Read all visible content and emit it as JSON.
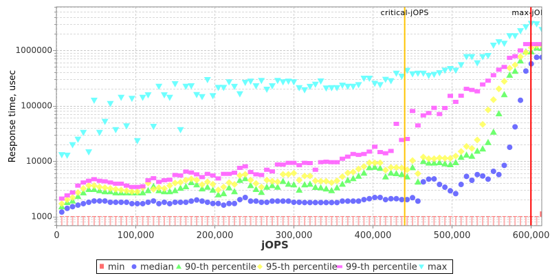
{
  "chart_data": {
    "type": "scatter",
    "ylabel": "Response time, usec",
    "xlabel": "jOPS",
    "yscale": "log",
    "ylim": [
      680,
      6060000
    ],
    "xlim": [
      0,
      613700
    ],
    "grid": true,
    "legend_position": "bottom",
    "y_ticks": [
      1000,
      10000,
      100000,
      1000000
    ],
    "y_tick_labels": [
      "1000",
      "10000",
      "100000",
      "1000000"
    ],
    "x_ticks": [
      0,
      100000,
      200000,
      300000,
      400000,
      500000,
      600000
    ],
    "x_tick_labels": [
      "0",
      "100,000",
      "200,000",
      "300,000",
      "400,000",
      "500,000",
      "600,000"
    ],
    "x_start": 6823,
    "x_step": 6823,
    "annotations": [
      {
        "name": "critical-jOPS",
        "label": "critical-jOPS",
        "x": 440400,
        "color": "#ffc400"
      },
      {
        "name": "max-jOPS",
        "label": "max-jOPS",
        "x": 600000,
        "color": "#ff0000"
      }
    ],
    "series": [
      {
        "name": "min",
        "marker": "square",
        "color": "#ff5555",
        "values": [
          1000,
          1000,
          1000,
          1000,
          1000,
          1000,
          1000,
          1000,
          1000,
          1000,
          1000,
          1000,
          1000,
          1000,
          1000,
          1000,
          1000,
          1000,
          1000,
          1000,
          1000,
          1000,
          1000,
          1000,
          1000,
          1000,
          1000,
          1000,
          1000,
          1000,
          1000,
          1000,
          1000,
          1000,
          1000,
          1000,
          1000,
          1000,
          1000,
          1000,
          1000,
          1000,
          1000,
          1000,
          1000,
          1000,
          1000,
          1000,
          1000,
          1000,
          1000,
          1000,
          1000,
          1000,
          1000,
          1000,
          1000,
          1000,
          1000,
          1000,
          1000,
          1000,
          1000,
          1000,
          1000,
          1000,
          1000,
          1000,
          1000,
          1000,
          1000,
          1000,
          1000,
          1000,
          1000,
          1000,
          1000,
          1000,
          1000,
          1000,
          1000,
          1000,
          1000,
          1000,
          1000,
          1000,
          1000,
          1000,
          1000,
          1100
        ]
      },
      {
        "name": "median",
        "marker": "circle",
        "color": "#5555ff",
        "values": [
          1200,
          1400,
          1500,
          1600,
          1700,
          1800,
          1900,
          1900,
          1900,
          1800,
          1800,
          1800,
          1800,
          1700,
          1700,
          1700,
          1800,
          1900,
          1700,
          1800,
          1700,
          1800,
          1800,
          1800,
          1890,
          1980,
          1890,
          1800,
          1710,
          1710,
          1600,
          1710,
          1710,
          2010,
          2200,
          1890,
          1890,
          1800,
          1800,
          1890,
          1890,
          1890,
          1890,
          1800,
          1800,
          1780,
          1780,
          1780,
          1780,
          1780,
          1780,
          1780,
          1890,
          1890,
          1890,
          1890,
          2010,
          2090,
          2200,
          2200,
          2010,
          2090,
          2090,
          2010,
          2010,
          2180,
          1890,
          4210,
          4710,
          4750,
          3780,
          3370,
          2900,
          2580,
          3780,
          5280,
          4490,
          5690,
          5370,
          4710,
          6520,
          5690,
          8350,
          17700,
          41400,
          125000,
          421000,
          569000,
          745000,
          745000
        ]
      },
      {
        "name": "90-th percentile",
        "marker": "triangle-up",
        "color": "#55ff55",
        "values": [
          1510,
          1800,
          1920,
          2320,
          2690,
          3100,
          3100,
          2950,
          2820,
          2820,
          2690,
          2690,
          2690,
          2690,
          2690,
          2690,
          2950,
          3500,
          2950,
          2820,
          2820,
          2950,
          3250,
          3470,
          4120,
          3750,
          3180,
          3400,
          3010,
          2480,
          2600,
          3310,
          2820,
          4530,
          4850,
          3640,
          3100,
          2740,
          3400,
          3640,
          3400,
          4320,
          3850,
          3750,
          3010,
          3750,
          3850,
          3370,
          3310,
          3160,
          2950,
          3310,
          3850,
          4530,
          4850,
          5370,
          6100,
          7660,
          7800,
          7450,
          5220,
          6100,
          5970,
          5750,
          5220,
          7660,
          4210,
          9900,
          9270,
          9270,
          9440,
          9000,
          8670,
          9440,
          11800,
          12900,
          12300,
          15200,
          16700,
          21800,
          33500,
          71900,
          159000,
          357000,
          421000,
          646000,
          944000,
          944000,
          1110000,
          1090000
        ]
      },
      {
        "name": "95-th percentile",
        "marker": "diamond",
        "color": "#ffff55",
        "values": [
          1700,
          2000,
          2200,
          2700,
          3200,
          3600,
          3600,
          3400,
          3300,
          3200,
          3100,
          3000,
          2900,
          2800,
          2800,
          3300,
          4000,
          3100,
          3300,
          3200,
          3600,
          4000,
          4120,
          4530,
          4750,
          4530,
          3750,
          4210,
          3810,
          3010,
          3400,
          4080,
          3780,
          5490,
          5750,
          4530,
          3930,
          3400,
          4530,
          4320,
          4210,
          5750,
          5750,
          6030,
          4530,
          5370,
          5370,
          4400,
          4320,
          4320,
          4080,
          4400,
          5220,
          6100,
          6320,
          7170,
          7960,
          9270,
          9270,
          9270,
          6840,
          7660,
          7660,
          7520,
          6950,
          10200,
          5930,
          11800,
          11000,
          11000,
          11400,
          11200,
          11200,
          12300,
          14900,
          18400,
          16900,
          24000,
          45900,
          83700,
          128000,
          201000,
          274000,
          475000,
          543000,
          766000,
          910000,
          1110000,
          1220000,
          1220000
        ]
      },
      {
        "name": "99-th percentile",
        "marker": "rect",
        "color": "#ff55ff",
        "values": [
          2100,
          2400,
          2700,
          3600,
          4100,
          4400,
          4700,
          4400,
          4300,
          4100,
          3900,
          3900,
          3600,
          3400,
          3400,
          3500,
          4500,
          4900,
          4200,
          4500,
          4600,
          5600,
          5490,
          6450,
          6200,
          5750,
          5130,
          5860,
          5490,
          4850,
          5860,
          5860,
          6150,
          7520,
          8010,
          6320,
          5750,
          5600,
          6950,
          6510,
          8670,
          8620,
          9270,
          9270,
          8410,
          9270,
          9180,
          6950,
          9530,
          9720,
          9530,
          9530,
          11000,
          12000,
          13400,
          12900,
          13400,
          14800,
          18100,
          14500,
          13800,
          15200,
          46900,
          24000,
          25000,
          80000,
          43900,
          66700,
          73400,
          91200,
          70500,
          90600,
          150000,
          117000,
          151000,
          201000,
          192000,
          181000,
          241000,
          282000,
          354000,
          445000,
          499000,
          729000,
          780000,
          991000,
          1290000,
          1290000,
          1290000,
          1290000
        ]
      },
      {
        "name": "max",
        "marker": "triangle-down",
        "color": "#55ffff",
        "values": [
          12900,
          12600,
          19500,
          24500,
          32600,
          14500,
          124000,
          32600,
          51500,
          108000,
          36500,
          140000,
          42700,
          134000,
          23100,
          140000,
          155000,
          41800,
          221000,
          155000,
          140000,
          246000,
          36500,
          221000,
          226000,
          157000,
          144000,
          292000,
          150000,
          211000,
          211000,
          266000,
          220000,
          162000,
          261000,
          274000,
          226000,
          282000,
          196000,
          226000,
          282000,
          266000,
          274000,
          266000,
          209000,
          192000,
          220000,
          241000,
          276000,
          206000,
          209000,
          209000,
          232000,
          221000,
          221000,
          237000,
          310000,
          310000,
          251000,
          237000,
          295000,
          279000,
          381000,
          337000,
          428000,
          371000,
          381000,
          381000,
          347000,
          364000,
          389000,
          432000,
          462000,
          432000,
          543000,
          759000,
          759000,
          586000,
          759000,
          794000,
          1220000,
          1410000,
          1320000,
          1810000,
          1810000,
          2230000,
          2620000,
          3020000,
          2970000,
          2340000
        ]
      }
    ]
  }
}
